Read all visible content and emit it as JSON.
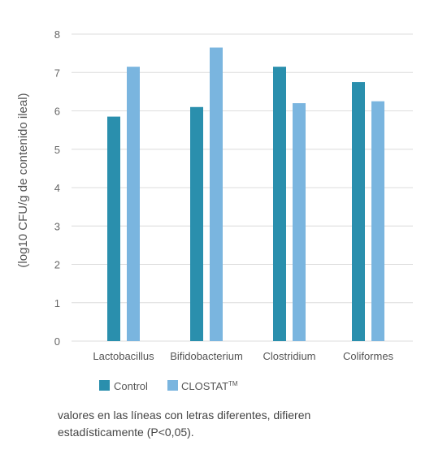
{
  "chart_data": {
    "type": "bar",
    "ylabel": "(log10 CFU/g de contenido ileal)",
    "xlabel": "",
    "ylim": [
      0,
      8
    ],
    "yticks": [
      "0",
      "1",
      "2",
      "3",
      "4",
      "5",
      "6",
      "7",
      "8"
    ],
    "grid": true,
    "legend_position": "bottom-left",
    "categories": [
      "Lactobacillus",
      "Bifidobacterium",
      "Clostridium",
      "Coliformes"
    ],
    "series": [
      {
        "name": "Control",
        "values": [
          5.85,
          6.1,
          7.15,
          6.75
        ]
      },
      {
        "name": "CLOSTAT™",
        "values": [
          7.15,
          7.65,
          6.2,
          6.25
        ]
      }
    ],
    "colors": [
      "#2a8fad",
      "#7ab5df"
    ]
  },
  "legend": {
    "control_label": "Control",
    "closstat_label": "CLOSTAT",
    "closstat_mark": "TM"
  },
  "footnote": {
    "line1": "valores en las líneas con letras diferentes, difieren",
    "line2": "estadísticamente (P<0,05)."
  }
}
